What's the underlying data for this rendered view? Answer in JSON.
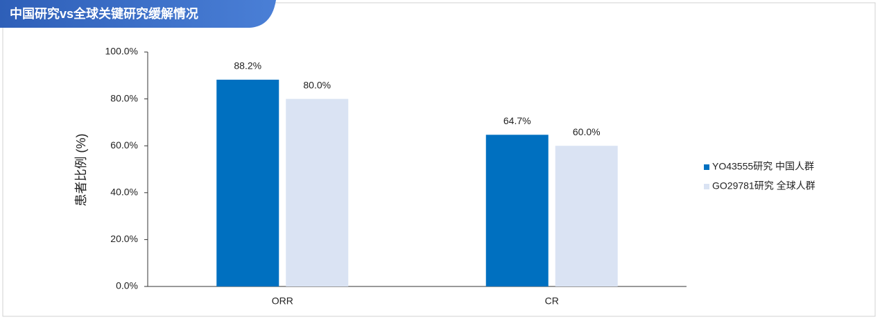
{
  "chart_data": {
    "type": "bar",
    "title": "中国研究vs全球关键研究缓解情况",
    "y_label": "患者比例 (%)",
    "categories": [
      "ORR",
      "CR"
    ],
    "series": [
      {
        "name": "YO43555研究 中国人群",
        "color": "#0070c0",
        "values": [
          88.2,
          64.7
        ],
        "value_labels": [
          "88.2%",
          "64.7%"
        ]
      },
      {
        "name": "GO29781研究 全球人群",
        "color": "#dae3f3",
        "values": [
          80.0,
          60.0
        ],
        "value_labels": [
          "80.0%",
          "60.0%"
        ]
      }
    ],
    "ylim": [
      0,
      100
    ],
    "yticks": [
      {
        "value": 0,
        "label": "0.0%"
      },
      {
        "value": 20,
        "label": "20.0%"
      },
      {
        "value": 40,
        "label": "40.0%"
      },
      {
        "value": 60,
        "label": "60.0%"
      },
      {
        "value": 80,
        "label": "80.0%"
      },
      {
        "value": 100,
        "label": "100.0%"
      }
    ],
    "legend": "right"
  }
}
